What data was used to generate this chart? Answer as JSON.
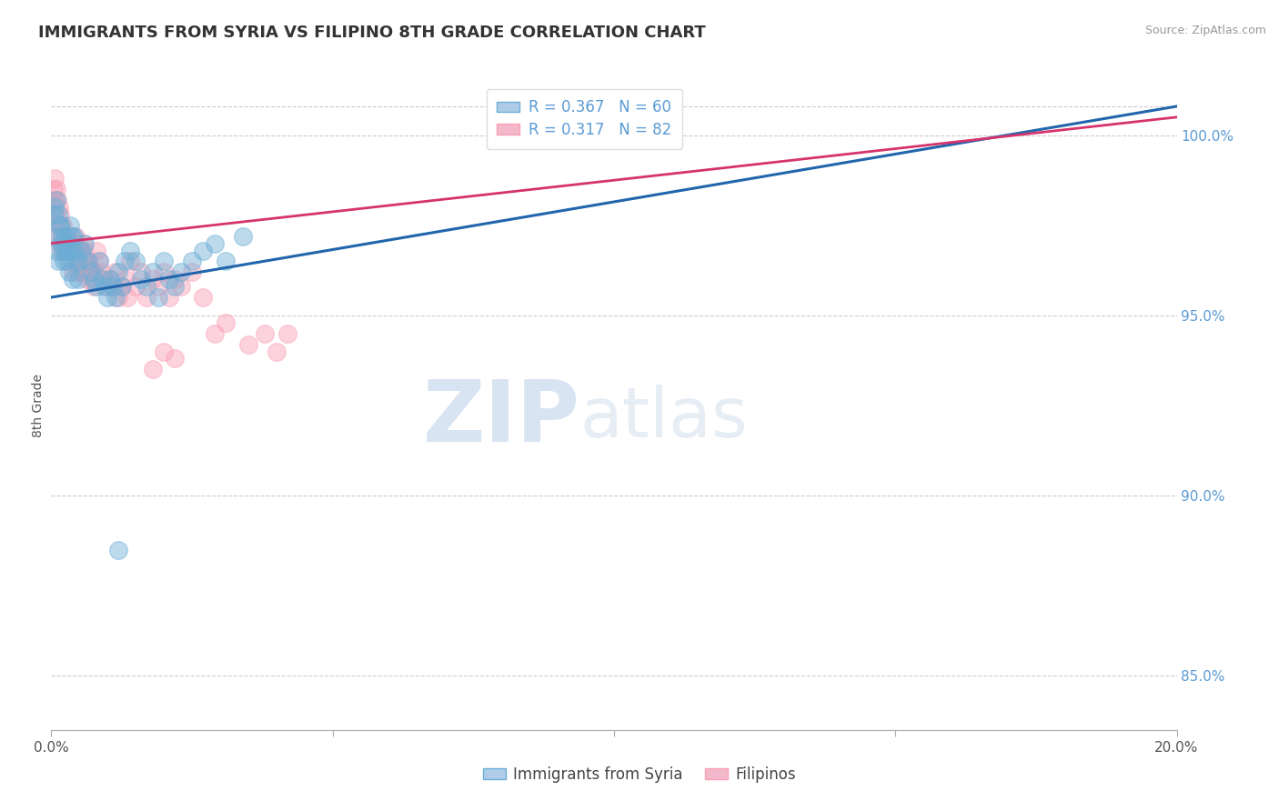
{
  "title": "IMMIGRANTS FROM SYRIA VS FILIPINO 8TH GRADE CORRELATION CHART",
  "source": "Source: ZipAtlas.com",
  "ylabel": "8th Grade",
  "right_yticks": [
    85.0,
    90.0,
    95.0,
    100.0
  ],
  "xlim": [
    0.0,
    20.0
  ],
  "ylim": [
    83.5,
    101.5
  ],
  "legend1_label": "R = 0.367   N = 60",
  "legend2_label": "R = 0.317   N = 82",
  "series1_name": "Immigrants from Syria",
  "series2_name": "Filipinos",
  "series1_color": "#6baed6",
  "series2_color": "#fa9fb5",
  "trend1_color": "#2166ac",
  "trend2_color": "#d6336c",
  "watermark_zip": "ZIP",
  "watermark_atlas": "atlas",
  "background_color": "#ffffff",
  "plot_bg_color": "#ffffff",
  "grid_color": "#cccccc",
  "series1_x": [
    0.05,
    0.08,
    0.1,
    0.12,
    0.15,
    0.18,
    0.2,
    0.22,
    0.25,
    0.28,
    0.3,
    0.32,
    0.35,
    0.38,
    0.4,
    0.42,
    0.45,
    0.48,
    0.5,
    0.55,
    0.6,
    0.65,
    0.7,
    0.75,
    0.8,
    0.85,
    0.9,
    0.95,
    1.0,
    1.05,
    1.1,
    1.15,
    1.2,
    1.25,
    1.3,
    1.4,
    1.5,
    1.6,
    1.7,
    1.8,
    1.9,
    2.0,
    2.1,
    2.2,
    2.3,
    2.5,
    2.7,
    2.9,
    3.1,
    3.4,
    0.06,
    0.09,
    0.13,
    0.16,
    0.19,
    0.23,
    0.27,
    0.33,
    0.37,
    1.2
  ],
  "series1_y": [
    97.8,
    97.2,
    96.8,
    96.5,
    97.5,
    97.0,
    96.8,
    96.5,
    97.2,
    96.5,
    97.0,
    96.2,
    96.8,
    96.0,
    97.2,
    96.8,
    96.5,
    96.0,
    96.5,
    96.8,
    97.0,
    96.5,
    96.2,
    96.0,
    95.8,
    96.5,
    96.0,
    95.8,
    95.5,
    96.0,
    95.8,
    95.5,
    96.2,
    95.8,
    96.5,
    96.8,
    96.5,
    96.0,
    95.8,
    96.2,
    95.5,
    96.5,
    96.0,
    95.8,
    96.2,
    96.5,
    96.8,
    97.0,
    96.5,
    97.2,
    98.0,
    98.2,
    97.8,
    97.5,
    97.2,
    97.0,
    96.8,
    97.5,
    97.2,
    88.5
  ],
  "series2_x": [
    0.04,
    0.06,
    0.08,
    0.1,
    0.12,
    0.15,
    0.17,
    0.2,
    0.22,
    0.25,
    0.28,
    0.3,
    0.33,
    0.35,
    0.38,
    0.4,
    0.42,
    0.45,
    0.48,
    0.5,
    0.53,
    0.55,
    0.58,
    0.6,
    0.63,
    0.65,
    0.68,
    0.7,
    0.73,
    0.75,
    0.78,
    0.8,
    0.85,
    0.9,
    0.95,
    1.0,
    1.05,
    1.1,
    1.15,
    1.2,
    1.25,
    1.3,
    1.35,
    1.4,
    1.5,
    1.6,
    1.7,
    1.8,
    1.9,
    2.0,
    2.1,
    2.2,
    2.3,
    2.5,
    2.7,
    2.9,
    3.1,
    3.5,
    3.8,
    4.0,
    4.2,
    1.8,
    2.0,
    2.2,
    0.06,
    0.09,
    0.11,
    0.14,
    0.16,
    0.18,
    0.21,
    0.24,
    0.27,
    0.31,
    0.34,
    0.37,
    0.43,
    0.47,
    0.52,
    0.57,
    0.62,
    0.67
  ],
  "series2_y": [
    98.5,
    98.2,
    97.8,
    97.5,
    97.2,
    97.0,
    96.8,
    97.5,
    97.0,
    96.8,
    97.2,
    96.8,
    97.0,
    96.5,
    96.2,
    97.0,
    96.8,
    96.5,
    96.2,
    96.8,
    96.5,
    96.2,
    96.8,
    96.5,
    96.2,
    96.0,
    96.5,
    96.2,
    96.0,
    95.8,
    96.2,
    96.8,
    96.5,
    96.2,
    96.0,
    95.8,
    96.0,
    95.8,
    96.2,
    95.5,
    95.8,
    96.0,
    95.5,
    96.5,
    95.8,
    96.2,
    95.5,
    96.0,
    95.8,
    96.2,
    95.5,
    96.0,
    95.8,
    96.2,
    95.5,
    94.5,
    94.8,
    94.2,
    94.5,
    94.0,
    94.5,
    93.5,
    94.0,
    93.8,
    98.8,
    98.5,
    98.2,
    98.0,
    97.8,
    97.5,
    97.2,
    97.0,
    96.8,
    97.2,
    97.0,
    96.8,
    97.2,
    97.0,
    96.8,
    97.0,
    96.5,
    96.2
  ]
}
